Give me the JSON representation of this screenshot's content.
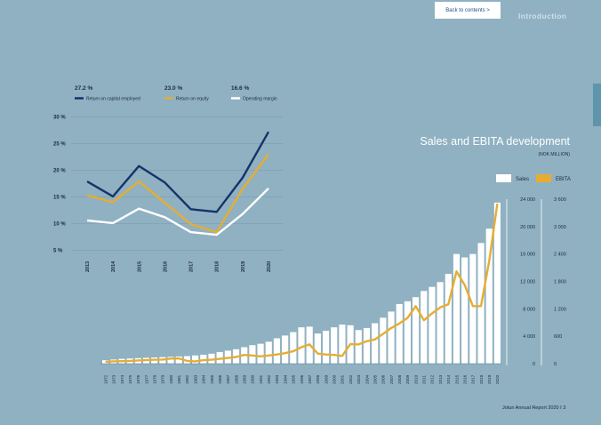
{
  "nav": {
    "back_label": "Back to contents >",
    "section_title": "Introduction"
  },
  "footer": {
    "text": "Jotun Annual Report 2020  I  3"
  },
  "chart_data": [
    {
      "type": "line",
      "x": [
        "2013",
        "2014",
        "2015",
        "2016",
        "2017",
        "2018",
        "2019",
        "2020"
      ],
      "ylim": [
        5,
        30
      ],
      "yticks": [
        "5 %",
        "10 %",
        "15 %",
        "20 %",
        "25 %",
        "30 %"
      ],
      "ytick_values": [
        5,
        10,
        15,
        20,
        25,
        30
      ],
      "grid": true,
      "series": [
        {
          "name": "Return on capital employed",
          "value_label": "27.2 %",
          "color": "#16336a",
          "values": [
            17.9,
            15.1,
            20.8,
            17.7,
            12.7,
            12.2,
            18.6,
            27.2
          ]
        },
        {
          "name": "Return on equity",
          "value_label": "23.0 %",
          "color": "#e6ad33",
          "values": [
            15.3,
            14.0,
            17.9,
            13.9,
            9.9,
            8.4,
            16.5,
            23.0
          ]
        },
        {
          "name": "Operating margin",
          "value_label": "16.6 %",
          "color": "#ffffff",
          "values": [
            10.6,
            10.1,
            12.8,
            11.2,
            8.4,
            7.9,
            11.8,
            16.6
          ]
        }
      ]
    },
    {
      "type": "bar",
      "title": "Sales and EBITA development",
      "subtitle": "(NOK MILLION)",
      "categories": [
        "1972",
        "1973",
        "1974",
        "1975",
        "1976",
        "1977",
        "1978",
        "1979",
        "1980",
        "1981",
        "1982",
        "1983",
        "1984",
        "1985",
        "1986",
        "1987",
        "1988",
        "1989",
        "1990",
        "1991",
        "1992",
        "1993",
        "1994",
        "1995",
        "1996",
        "1997",
        "1998",
        "1999",
        "2000",
        "2001",
        "2002",
        "2003",
        "2004",
        "2005",
        "2006",
        "2007",
        "2008",
        "2009",
        "2010",
        "2011",
        "2012",
        "2013",
        "2014",
        "2015",
        "2016",
        "2017",
        "2018",
        "2019",
        "2020"
      ],
      "left_axis": {
        "ylim": [
          0,
          24000
        ],
        "ticks": [
          0,
          4000,
          8000,
          12000,
          16000,
          20000,
          24000
        ],
        "tick_labels": [
          "0",
          "4 000",
          "8 000",
          "12 000",
          "16 000",
          "20 000",
          "24 000"
        ]
      },
      "right_axis": {
        "ylim": [
          0,
          3600
        ],
        "ticks": [
          0,
          600,
          1200,
          1800,
          2400,
          3000,
          3600
        ],
        "tick_labels": [
          "0",
          "600",
          "1 200",
          "1 800",
          "2 400",
          "3 000",
          "3 600"
        ]
      },
      "series": [
        {
          "name": "Sales",
          "color": "#ffffff",
          "axis": "left",
          "values": [
            500,
            600,
            700,
            750,
            800,
            850,
            900,
            950,
            1000,
            1050,
            1100,
            1200,
            1300,
            1450,
            1700,
            1900,
            2100,
            2400,
            2700,
            2900,
            3200,
            3700,
            4100,
            4600,
            5300,
            5400,
            4400,
            4800,
            5300,
            5700,
            5600,
            4900,
            5200,
            5900,
            6700,
            7600,
            8700,
            9100,
            9700,
            10600,
            11200,
            11900,
            13100,
            16000,
            15500,
            16000,
            17600,
            19700,
            23500
          ]
        },
        {
          "name": "EBITA",
          "color": "#e6ad33",
          "axis": "right",
          "values": [
            40,
            50,
            55,
            60,
            70,
            75,
            85,
            90,
            110,
            115,
            60,
            50,
            75,
            85,
            105,
            125,
            145,
            190,
            180,
            160,
            180,
            200,
            230,
            270,
            360,
            420,
            220,
            200,
            190,
            170,
            430,
            420,
            490,
            530,
            650,
            780,
            880,
            1000,
            1260,
            950,
            1100,
            1230,
            1300,
            2020,
            1720,
            1260,
            1260,
            2240,
            3500
          ]
        }
      ]
    }
  ]
}
